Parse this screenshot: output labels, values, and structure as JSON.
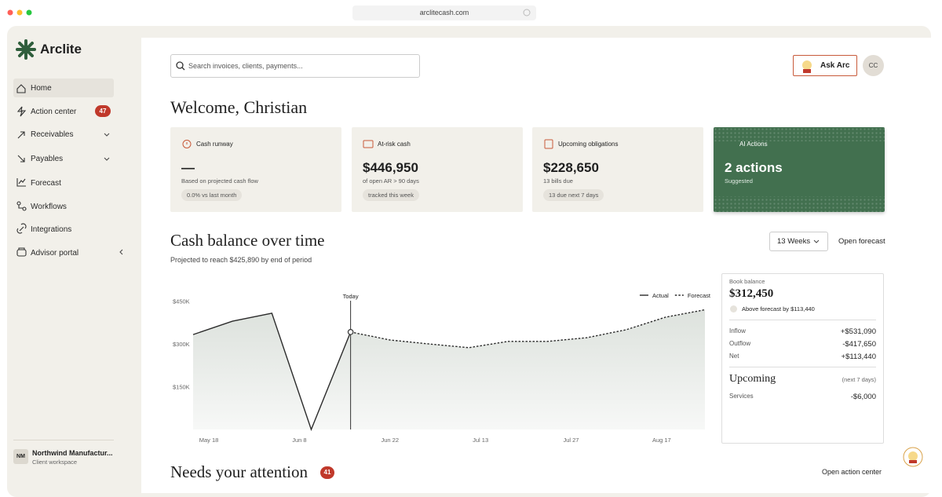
{
  "browser": {
    "url": "arclitecash.com"
  },
  "sidebar": {
    "brand": "Arclite",
    "nav": [
      {
        "label": "Home"
      },
      {
        "label": "Action center",
        "badge": 47
      },
      {
        "label": "Receivables"
      },
      {
        "label": "Payables"
      },
      {
        "label": "Forecast"
      },
      {
        "label": "Workflows"
      },
      {
        "label": "Integrations"
      },
      {
        "label": "Advisor portal"
      }
    ],
    "workspace": {
      "initials": "NM",
      "name": "Northwind Manufactur...",
      "role": "Client workspace"
    }
  },
  "header": {
    "search_placeholder": "Search invoices, clients, payments...",
    "ask_button": "Ask Arc",
    "avatar": "CC"
  },
  "welcome": "Welcome, Christian",
  "cards": [
    {
      "title": "Cash runway",
      "value": "—",
      "caption": "Based on projected cash flow",
      "trend": "0.0% vs last month"
    },
    {
      "title": "At-risk cash",
      "value": "$446,950",
      "caption": "of open AR > 90 days",
      "trend": "tracked this week"
    },
    {
      "title": "Upcoming obligations",
      "value": "$228,650",
      "caption": "13 bills due",
      "trend": "13 due next 7 days"
    },
    {
      "title": "AI Actions",
      "value": "2 actions",
      "caption": "Suggested"
    }
  ],
  "cash_section": {
    "title": "Cash balance over time",
    "subtitle": "Projected to reach $425,890 by end of period",
    "range": "13 Weeks",
    "link": "Open forecast"
  },
  "chart_data": {
    "type": "line",
    "x": [
      0,
      1,
      2,
      3,
      4,
      5,
      6,
      7,
      8,
      9,
      10,
      11,
      12,
      13
    ],
    "xlim": [
      0,
      13
    ],
    "xticks": [
      {
        "value": 0.4,
        "label": "May 18"
      },
      {
        "value": 2.7,
        "label": "Jun 8"
      },
      {
        "value": 5,
        "label": "Jun 22"
      },
      {
        "value": 7.3,
        "label": "Jul 13"
      },
      {
        "value": 9.6,
        "label": "Jul 27"
      },
      {
        "value": 11.9,
        "label": "Aug 17"
      }
    ],
    "ylim": [
      0,
      500000
    ],
    "yticks": [
      {
        "value": 150000,
        "label": "$150K"
      },
      {
        "value": 300000,
        "label": "$300K"
      },
      {
        "value": 450000,
        "label": "$450K"
      }
    ],
    "series": [
      {
        "name": "Actual",
        "color": "#2b2b2b",
        "style": "solid",
        "values": [
          333000,
          380000,
          408000,
          0,
          342000,
          null,
          null,
          null,
          null,
          null,
          null,
          null,
          null,
          null
        ]
      },
      {
        "name": "Forecast",
        "color": "#2b2b2b",
        "style": "dashed",
        "values": [
          null,
          null,
          null,
          null,
          342000,
          314000,
          300000,
          287000,
          309000,
          309000,
          322000,
          350000,
          394000,
          420000
        ]
      }
    ],
    "today": {
      "x": 4,
      "label": "Today"
    },
    "legend": "top-right",
    "grid": false
  },
  "balance_panel": {
    "label": "Book balance",
    "value": "$312,450",
    "note": "Above forecast by $113,440",
    "rows": [
      [
        "Inflow",
        "+$531,090"
      ],
      [
        "Outflow",
        "-$417,650"
      ],
      [
        "Net",
        "+$113,440"
      ]
    ],
    "upcoming": {
      "title": "Upcoming",
      "period": "(next 7 days)",
      "rows": [
        [
          "Services",
          "-$6,000"
        ]
      ]
    }
  },
  "attention": {
    "title": "Needs your attention",
    "badge": 41,
    "link": "Open action center"
  }
}
